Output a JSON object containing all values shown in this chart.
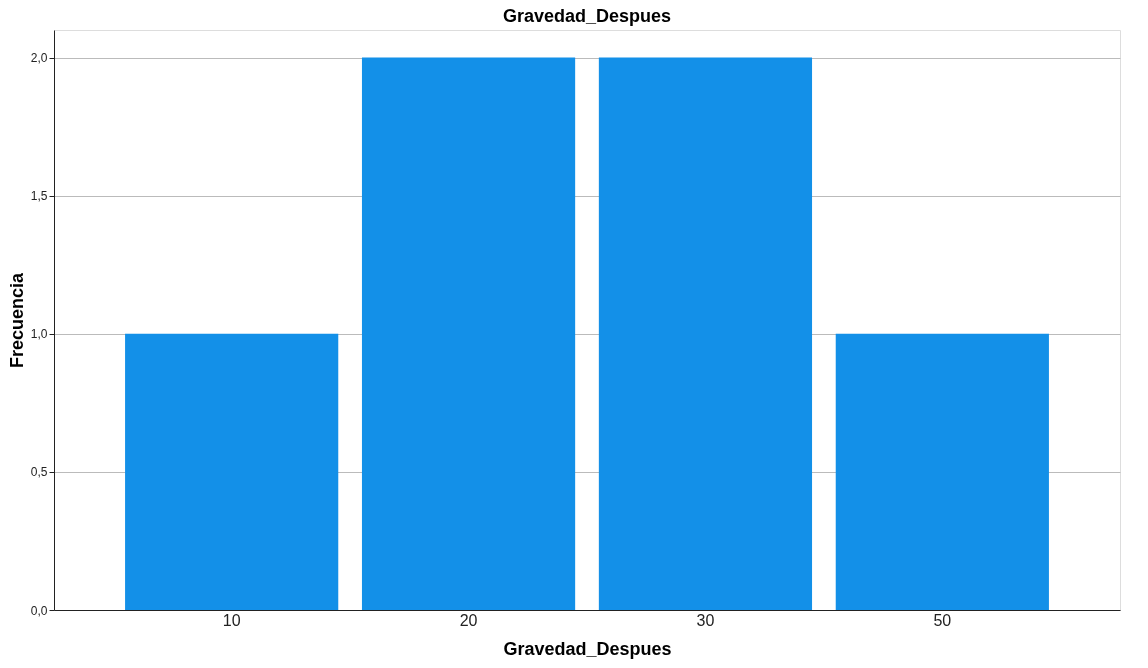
{
  "chart_data": {
    "type": "bar",
    "title": "Gravedad_Despues",
    "xlabel": "Gravedad_Despues",
    "ylabel": "Frecuencia",
    "categories": [
      "10",
      "20",
      "30",
      "50"
    ],
    "values": [
      1,
      2,
      2,
      1
    ],
    "color": "#1390e8",
    "ylim": [
      0,
      2.1
    ],
    "yticks": [
      {
        "value": 0,
        "label": "0,0"
      },
      {
        "value": 0.5,
        "label": "0,5"
      },
      {
        "value": 1,
        "label": "1,0"
      },
      {
        "value": 1.5,
        "label": "1,5"
      },
      {
        "value": 2,
        "label": "2,0"
      }
    ],
    "grid": "y"
  }
}
